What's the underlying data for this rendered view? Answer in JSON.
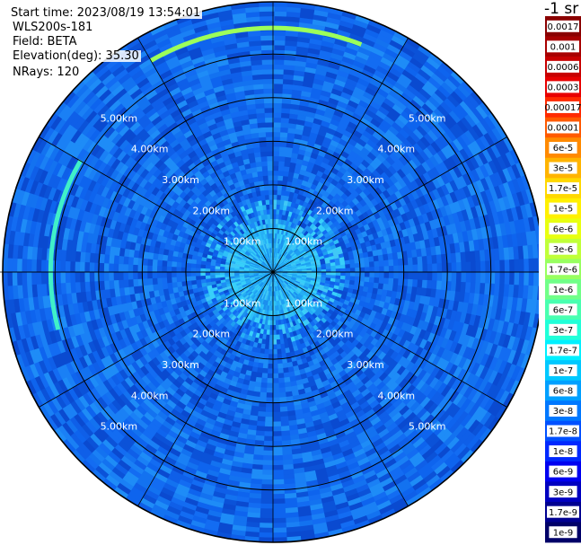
{
  "header": {
    "start_time": "Start time: 2023/08/19 13:54:01",
    "instrument": "WLS200s-181",
    "field": "Field: BETA",
    "elevation": "Elevation(deg): 35.30",
    "nrays": "NRays: 120"
  },
  "colorbar": {
    "units_label": "-1 sr",
    "labels": [
      "0.0017",
      "0.001",
      "0.0006",
      "0.0003",
      "0.00017",
      "0.0001",
      "6e-5",
      "3e-5",
      "1.7e-5",
      "1e-5",
      "6e-6",
      "3e-6",
      "1.7e-6",
      "1e-6",
      "6e-7",
      "3e-7",
      "1.7e-7",
      "1e-7",
      "6e-8",
      "3e-8",
      "1.7e-8",
      "1e-8",
      "6e-9",
      "3e-9",
      "1.7e-9",
      "1e-9"
    ],
    "colors": [
      "#8a0000",
      "#a80000",
      "#c80000",
      "#e80000",
      "#ff2a00",
      "#ff5a00",
      "#ff8a00",
      "#ffb400",
      "#ffd800",
      "#fff000",
      "#e8ff10",
      "#c0ff38",
      "#98ff60",
      "#70ff88",
      "#48ffb0",
      "#20ffd8",
      "#00f0ff",
      "#00c8ff",
      "#00a0ff",
      "#0078ff",
      "#0050ff",
      "#0028ff",
      "#0000f0",
      "#0000c0",
      "#000090",
      "#000068"
    ]
  },
  "chart_data": {
    "type": "heatmap",
    "title": "",
    "projection": "polar-ppi",
    "field": "BETA",
    "range_rings_km": [
      1,
      2,
      3,
      4,
      5
    ],
    "ring_labels": [
      "1.00km",
      "2.00km",
      "3.00km",
      "4.00km",
      "5.00km"
    ],
    "max_range_km": 6.2,
    "radial_spokes_deg": [
      0,
      30,
      60,
      90,
      120,
      150,
      180,
      210,
      240,
      270,
      300,
      330
    ],
    "nrays": 120,
    "background_value_range": [
      "1e-8",
      "3e-8"
    ],
    "near_range_value_range": [
      "6e-8",
      "1.7e-7"
    ],
    "features": [
      {
        "name": "arc north",
        "azimuth_range_deg": [
          330,
          20
        ],
        "range_km": 5.6,
        "value": "1e-6"
      },
      {
        "name": "arc west",
        "azimuth_range_deg": [
          255,
          300
        ],
        "range_km": 5.1,
        "value": "3e-7"
      }
    ]
  }
}
